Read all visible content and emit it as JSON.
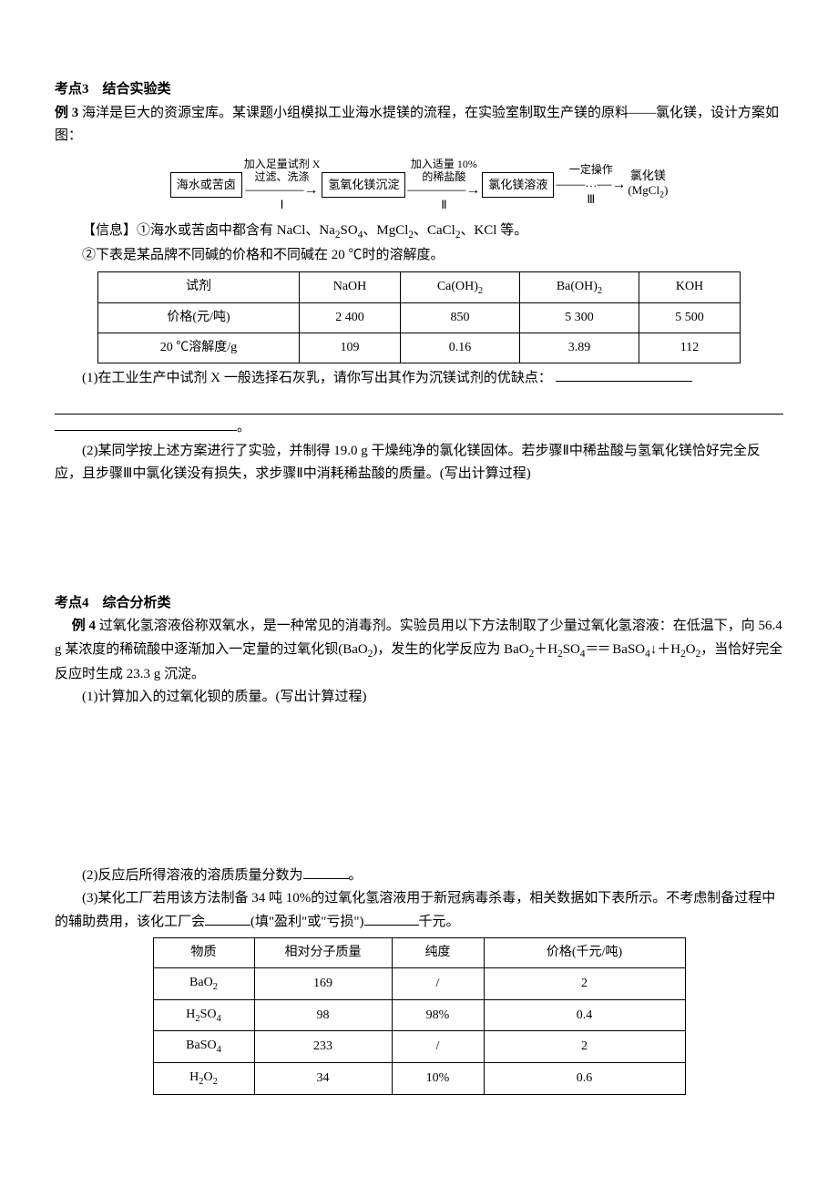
{
  "section3": {
    "title": "考点3　结合实验类",
    "ex_label": "例 3",
    "ex_intro": "海洋是巨大的资源宝库。某课题小组模拟工业海水提镁的流程，在实验室制取生产镁的原料——氯化镁，设计方案如图：",
    "flow": {
      "box1": "海水或苦卤",
      "a1_top1": "加入足量试剂 X",
      "a1_top2": "过滤、洗涤",
      "a1_bot": "Ⅰ",
      "box2": "氢氧化镁沉淀",
      "a2_top1": "加入适量 10%",
      "a2_top2": "的稀盐酸",
      "a2_bot": "Ⅱ",
      "box3": "氯化镁溶液",
      "a3_top": "一定操作",
      "a3_mid": "…",
      "a3_bot": "Ⅲ",
      "final_top": "氯化镁",
      "final_bot": "(MgCl₂)"
    },
    "info_label": "【信息】",
    "info1": "①海水或苦卤中都含有 NaCl、Na₂SO₄、MgCl₂、CaCl₂、KCl 等。",
    "info2": "②下表是某品牌不同碱的价格和不同碱在 20 ℃时的溶解度。",
    "table1": {
      "h1": "试剂",
      "h2": "NaOH",
      "h3": "Ca(OH)₂",
      "h4": "Ba(OH)₂",
      "h5": "KOH",
      "r1c1": "价格(元/吨)",
      "r1c2": "2 400",
      "r1c3": "850",
      "r1c4": "5 300",
      "r1c5": "5 500",
      "r2c1": "20 ℃溶解度/g",
      "r2c2": "109",
      "r2c3": "0.16",
      "r2c4": "3.89",
      "r2c5": "112"
    },
    "q1_a": "(1)在工业生产中试剂 X 一般选择石灰乳，请你写出其作为沉镁试剂的优缺点：",
    "q1_end": "。",
    "q2": "(2)某同学按上述方案进行了实验，并制得 19.0 g 干燥纯净的氯化镁固体。若步骤Ⅱ中稀盐酸与氢氧化镁恰好完全反应，且步骤Ⅲ中氯化镁没有损失，求步骤Ⅱ中消耗稀盐酸的质量。(写出计算过程)"
  },
  "section4": {
    "title": "考点4　综合分析类",
    "ex_label": "例 4",
    "ex_intro_a": "过氧化氢溶液俗称双氧水，是一种常见的消毒剂。实验员用以下方法制取了少量过氧化氢溶液：在低温下，向 56.4 g 某浓度的稀硫酸中逐渐加入一定量的过氧化钡(BaO₂)，发生的化学反应为 BaO₂＋H₂SO₄",
    "eq_sign": "＝＝",
    "ex_intro_b": " BaSO₄↓＋H₂O₂，当恰好完全反应时生成 23.3 g 沉淀。",
    "q1": "(1)计算加入的过氧化钡的质量。(写出计算过程)",
    "q2_a": "(2)反应后所得溶液的溶质质量分数为",
    "q2_end": "。",
    "q3_a": "(3)某化工厂若用该方法制备 34 吨 10%的过氧化氢溶液用于新冠病毒杀毒，相关数据如下表所示。不考虑制备过程中的辅助费用，该化工厂会",
    "q3_mid": "(填\"盈利\"或\"亏损\")",
    "q3_end": "千元。",
    "table2": {
      "h1": "物质",
      "h2": "相对分子质量",
      "h3": "纯度",
      "h4": "价格(千元/吨)",
      "r1c1": "BaO₂",
      "r1c2": "169",
      "r1c3": "/",
      "r1c4": "2",
      "r2c1": "H₂SO₄",
      "r2c2": "98",
      "r2c3": "98%",
      "r2c4": "0.4",
      "r3c1": "BaSO₄",
      "r3c2": "233",
      "r3c3": "/",
      "r3c4": "2",
      "r4c1": "H₂O₂",
      "r4c2": "34",
      "r4c3": "10%",
      "r4c4": "0.6"
    }
  },
  "table_widths": {
    "t1": {
      "c1": 200,
      "c2": 90,
      "c3": 110,
      "c4": 110,
      "c5": 90
    },
    "t2": {
      "c1": 90,
      "c2": 130,
      "c3": 80,
      "c4": 200
    }
  }
}
